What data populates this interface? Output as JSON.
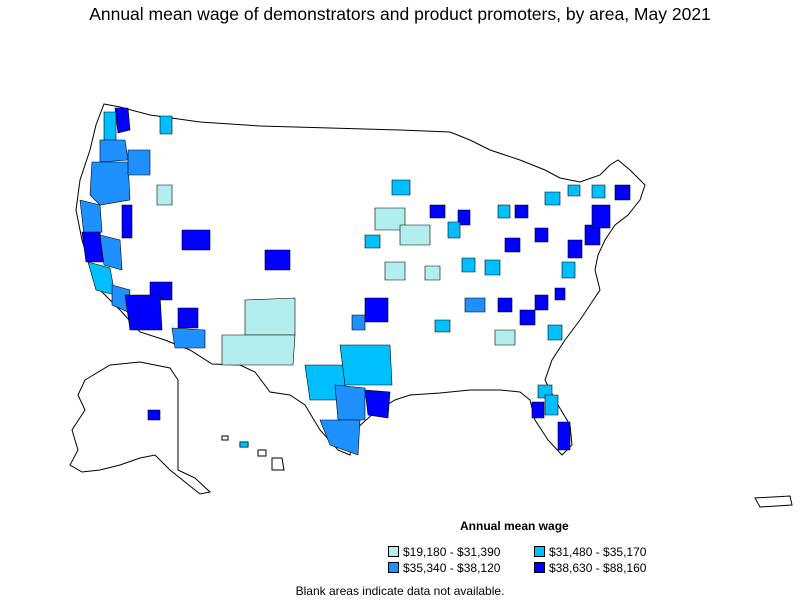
{
  "title": "Annual mean wage of demonstrators and product promoters, by area, May 2021",
  "legend": {
    "title": "Annual mean wage",
    "items": [
      {
        "label": "$19,180 - $31,390",
        "color": "#b2eeee"
      },
      {
        "label": "$31,480 - $35,170",
        "color": "#00bfff"
      },
      {
        "label": "$35,340 - $38,120",
        "color": "#1e90ff"
      },
      {
        "label": "$38,630 - $88,160",
        "color": "#0000ff"
      }
    ]
  },
  "footnote": "Blank areas indicate data not available.",
  "colors": {
    "stroke": "#000000",
    "blank": "#ffffff"
  }
}
